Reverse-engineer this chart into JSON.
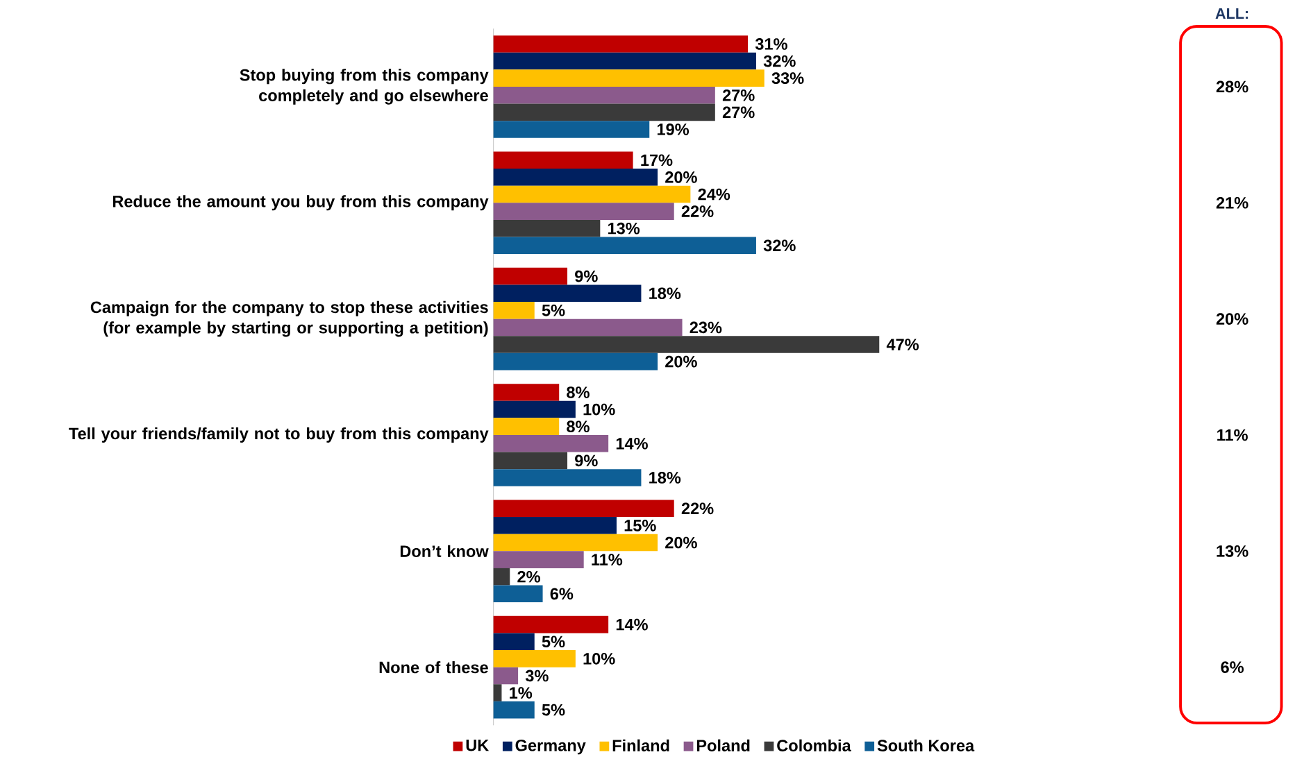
{
  "chart_data": {
    "type": "bar",
    "orientation": "horizontal",
    "legend": "bottom",
    "categories": [
      "Stop buying from this company completely and go elsewhere",
      "Reduce the amount you buy from this company",
      "Campaign for the company to stop these activities (for example by starting or supporting a petition)",
      "Tell your friends/family not to buy from this company",
      "Don’t know",
      "None of these"
    ],
    "series": [
      {
        "name": "UK",
        "color": "#c00000",
        "values": [
          31,
          17,
          9,
          8,
          22,
          14
        ],
        "value_labels": [
          "31%",
          "17%",
          "9%",
          "8%",
          "22%",
          "14%"
        ]
      },
      {
        "name": "Germany",
        "color": "#002060",
        "values": [
          32,
          20,
          18,
          10,
          15,
          5
        ],
        "value_labels": [
          "32%",
          "20%",
          "18%",
          "10%",
          "15%",
          "5%"
        ]
      },
      {
        "name": "Finland",
        "color": "#ffc000",
        "values": [
          33,
          24,
          5,
          8,
          20,
          10
        ],
        "value_labels": [
          "33%",
          "24%",
          "5%",
          "8%",
          "20%",
          "10%"
        ]
      },
      {
        "name": "Poland",
        "color": "#8b5a8c",
        "values": [
          27,
          22,
          23,
          14,
          11,
          3
        ],
        "value_labels": [
          "27%",
          "22%",
          "23%",
          "14%",
          "11%",
          "3%"
        ]
      },
      {
        "name": "Colombia",
        "color": "#3a3a3a",
        "values": [
          27,
          13,
          47,
          9,
          2,
          1
        ],
        "value_labels": [
          "27%",
          "13%",
          "47%",
          "9%",
          "2%",
          "1%"
        ]
      },
      {
        "name": "South Korea",
        "color": "#0e5f96",
        "values": [
          19,
          32,
          20,
          18,
          6,
          5
        ],
        "value_labels": [
          "19%",
          "32%",
          "20%",
          "18%",
          "6%",
          "5%"
        ]
      }
    ],
    "annotations": [
      "ALL:",
      "28%",
      "21%",
      "20%",
      "11%",
      "13%",
      "6%"
    ]
  }
}
